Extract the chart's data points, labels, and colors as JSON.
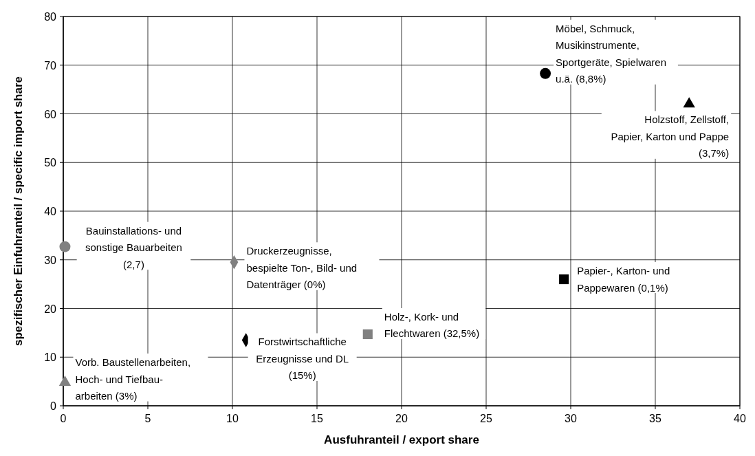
{
  "chart_data": {
    "type": "scatter",
    "xlabel": "Ausfuhranteil / export share",
    "ylabel": "spezifischer Einfuhranteil / specific import share",
    "xlim": [
      0,
      40
    ],
    "xticks": [
      0,
      5,
      10,
      15,
      20,
      25,
      30,
      35,
      40
    ],
    "ylim": [
      0,
      80
    ],
    "yticks": [
      0,
      10,
      20,
      30,
      40,
      50,
      60,
      70,
      80
    ],
    "grid": true,
    "series": [
      {
        "name": "Möbel, Schmuck,\nMusikinstrumente,\nSportgeräte, Spielwaren\nu.ä. (8,8%)",
        "color": "#000000",
        "marker": "circle",
        "x": [
          28.5
        ],
        "values": [
          68.3
        ]
      },
      {
        "name": "Holzstoff, Zellstoff,\nPapier, Karton und Pappe\n(3,7%)",
        "color": "#000000",
        "marker": "triangle",
        "x": [
          37
        ],
        "values": [
          62
        ]
      },
      {
        "name": "Bauinstallations- und\nsonstige Bauarbeiten\n(2,7)",
        "color": "#808080",
        "marker": "circle",
        "x": [
          0.1
        ],
        "values": [
          32.7
        ]
      },
      {
        "name": "Druckerzeugnisse,\nbespielte Ton-, Bild- und\nDatenträger (0%)",
        "color": "#808080",
        "marker": "diamond",
        "x": [
          10.1
        ],
        "values": [
          29.5
        ]
      },
      {
        "name": "Papier-, Karton- und\nPappewaren (0,1%)",
        "color": "#000000",
        "marker": "square",
        "x": [
          29.6
        ],
        "values": [
          26
        ]
      },
      {
        "name": "Holz-, Kork- und\nFlechtwaren (32,5%)",
        "color": "#808080",
        "marker": "square",
        "x": [
          18
        ],
        "values": [
          14.7
        ]
      },
      {
        "name": "Forstwirtschaftliche\nErzeugnisse und DL\n(15%)",
        "color": "#000000",
        "marker": "diamond",
        "x": [
          10.8
        ],
        "values": [
          13.5
        ]
      },
      {
        "name": "Vorb. Baustellenarbeiten,\nHoch- und Tiefbau-\narbeiten (3%)",
        "color": "#808080",
        "marker": "triangle",
        "x": [
          0.1
        ],
        "values": [
          4.8
        ]
      }
    ]
  }
}
